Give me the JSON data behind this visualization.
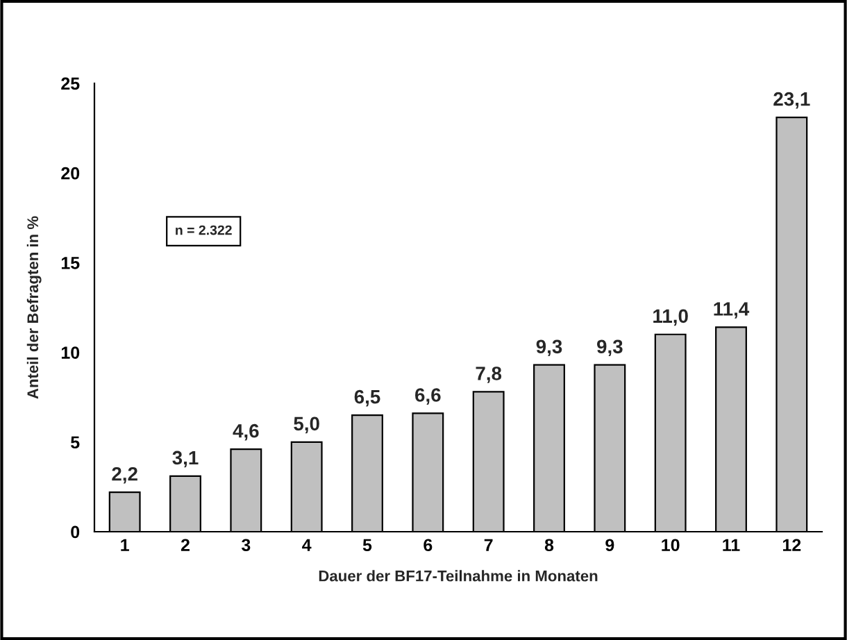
{
  "chart_data": {
    "type": "bar",
    "xlabel": "Dauer der BF17-Teilnahme in Monaten",
    "ylabel": "Anteil der Befragten in %",
    "categories": [
      "1",
      "2",
      "3",
      "4",
      "5",
      "6",
      "7",
      "8",
      "9",
      "10",
      "11",
      "12"
    ],
    "values": [
      2.2,
      3.1,
      4.6,
      5.0,
      6.5,
      6.6,
      7.8,
      9.3,
      9.3,
      11.0,
      11.4,
      23.1
    ],
    "value_labels": [
      "2,2",
      "3,1",
      "4,6",
      "5,0",
      "6,5",
      "6,6",
      "7,8",
      "9,3",
      "9,3",
      "11,0",
      "11,4",
      "23,1"
    ],
    "color": "#c0c0c0",
    "ylim": [
      0,
      25
    ],
    "yticks": [
      0,
      5,
      10,
      15,
      20,
      25
    ],
    "annotations": [
      "n = 2.322"
    ],
    "grid": false,
    "legend": false
  }
}
